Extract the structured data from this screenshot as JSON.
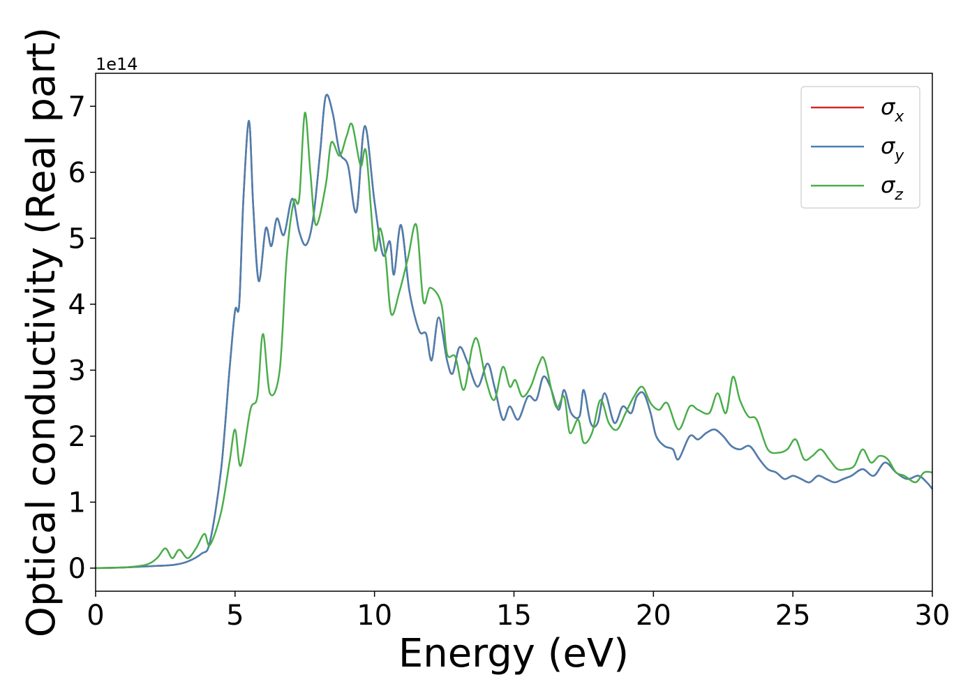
{
  "chart_data": {
    "type": "line",
    "xlabel": "Energy (eV)",
    "ylabel": "Optical conductivity (Real part)",
    "y_offset_label": "1e14",
    "xlim": [
      0,
      30
    ],
    "ylim": [
      -0.35,
      7.5
    ],
    "xticks": [
      0,
      5,
      10,
      15,
      20,
      25,
      30
    ],
    "yticks": [
      0,
      1,
      2,
      3,
      4,
      5,
      6,
      7
    ],
    "grid": false,
    "legend_position": "top-right",
    "colors": {
      "sigma_x": "#d62728",
      "sigma_y": "#4a7fb0",
      "sigma_z": "#4aad4a"
    },
    "legend": [
      {
        "key": "sigma_x",
        "symbol": "σ",
        "subscript": "x"
      },
      {
        "key": "sigma_y",
        "symbol": "σ",
        "subscript": "y"
      },
      {
        "key": "sigma_z",
        "symbol": "σ",
        "subscript": "z"
      }
    ],
    "series": [
      {
        "key": "sigma_xy",
        "points": [
          [
            0,
            0
          ],
          [
            1,
            0.01
          ],
          [
            2,
            0.03
          ],
          [
            2.8,
            0.05
          ],
          [
            3.3,
            0.1
          ],
          [
            3.8,
            0.22
          ],
          [
            4.1,
            0.4
          ],
          [
            4.5,
            1.5
          ],
          [
            4.8,
            3.0
          ],
          [
            5.0,
            3.9
          ],
          [
            5.15,
            4.0
          ],
          [
            5.3,
            5.6
          ],
          [
            5.5,
            6.78
          ],
          [
            5.65,
            5.5
          ],
          [
            5.85,
            4.35
          ],
          [
            6.1,
            5.15
          ],
          [
            6.3,
            4.88
          ],
          [
            6.5,
            5.3
          ],
          [
            6.75,
            5.05
          ],
          [
            7.05,
            5.6
          ],
          [
            7.3,
            5.1
          ],
          [
            7.55,
            4.9
          ],
          [
            7.8,
            5.3
          ],
          [
            8.05,
            6.3
          ],
          [
            8.25,
            7.15
          ],
          [
            8.5,
            6.9
          ],
          [
            8.75,
            6.3
          ],
          [
            9.05,
            6.1
          ],
          [
            9.35,
            5.4
          ],
          [
            9.65,
            6.7
          ],
          [
            10.0,
            5.55
          ],
          [
            10.3,
            4.75
          ],
          [
            10.55,
            4.95
          ],
          [
            10.7,
            4.45
          ],
          [
            10.95,
            5.2
          ],
          [
            11.25,
            4.2
          ],
          [
            11.6,
            3.6
          ],
          [
            11.85,
            3.55
          ],
          [
            12.05,
            3.15
          ],
          [
            12.3,
            3.8
          ],
          [
            12.6,
            3.15
          ],
          [
            12.8,
            2.95
          ],
          [
            13.05,
            3.35
          ],
          [
            13.35,
            3.1
          ],
          [
            13.7,
            2.75
          ],
          [
            14.05,
            3.1
          ],
          [
            14.3,
            2.75
          ],
          [
            14.6,
            2.25
          ],
          [
            14.85,
            2.45
          ],
          [
            15.15,
            2.25
          ],
          [
            15.5,
            2.6
          ],
          [
            15.8,
            2.55
          ],
          [
            16.05,
            2.9
          ],
          [
            16.3,
            2.75
          ],
          [
            16.6,
            2.4
          ],
          [
            16.8,
            2.7
          ],
          [
            17.05,
            2.35
          ],
          [
            17.35,
            2.3
          ],
          [
            17.5,
            2.7
          ],
          [
            17.75,
            2.2
          ],
          [
            18.0,
            2.2
          ],
          [
            18.25,
            2.65
          ],
          [
            18.6,
            2.2
          ],
          [
            18.9,
            2.45
          ],
          [
            19.2,
            2.35
          ],
          [
            19.4,
            2.6
          ],
          [
            19.65,
            2.65
          ],
          [
            19.9,
            2.35
          ],
          [
            20.1,
            2.0
          ],
          [
            20.4,
            1.85
          ],
          [
            20.7,
            1.8
          ],
          [
            20.9,
            1.65
          ],
          [
            21.3,
            2.0
          ],
          [
            21.6,
            1.95
          ],
          [
            21.9,
            2.05
          ],
          [
            22.2,
            2.1
          ],
          [
            22.5,
            2.0
          ],
          [
            22.8,
            1.85
          ],
          [
            23.1,
            1.8
          ],
          [
            23.45,
            1.85
          ],
          [
            23.8,
            1.65
          ],
          [
            24.1,
            1.5
          ],
          [
            24.4,
            1.45
          ],
          [
            24.7,
            1.35
          ],
          [
            25.0,
            1.4
          ],
          [
            25.3,
            1.35
          ],
          [
            25.6,
            1.3
          ],
          [
            25.9,
            1.4
          ],
          [
            26.2,
            1.35
          ],
          [
            26.5,
            1.3
          ],
          [
            26.8,
            1.35
          ],
          [
            27.1,
            1.4
          ],
          [
            27.5,
            1.5
          ],
          [
            27.9,
            1.4
          ],
          [
            28.3,
            1.6
          ],
          [
            28.7,
            1.45
          ],
          [
            29.1,
            1.35
          ],
          [
            29.5,
            1.4
          ],
          [
            29.8,
            1.3
          ],
          [
            30.0,
            1.2
          ]
        ]
      },
      {
        "key": "sigma_z",
        "points": [
          [
            0,
            0
          ],
          [
            1,
            0.01
          ],
          [
            1.8,
            0.05
          ],
          [
            2.2,
            0.15
          ],
          [
            2.5,
            0.3
          ],
          [
            2.75,
            0.15
          ],
          [
            3.0,
            0.28
          ],
          [
            3.3,
            0.15
          ],
          [
            3.6,
            0.3
          ],
          [
            3.9,
            0.52
          ],
          [
            4.1,
            0.35
          ],
          [
            4.5,
            0.85
          ],
          [
            4.8,
            1.6
          ],
          [
            5.0,
            2.1
          ],
          [
            5.2,
            1.55
          ],
          [
            5.55,
            2.4
          ],
          [
            5.8,
            2.6
          ],
          [
            6.0,
            3.55
          ],
          [
            6.25,
            2.65
          ],
          [
            6.6,
            3.0
          ],
          [
            6.85,
            4.7
          ],
          [
            7.1,
            5.55
          ],
          [
            7.3,
            5.6
          ],
          [
            7.5,
            6.9
          ],
          [
            7.7,
            6.0
          ],
          [
            7.9,
            5.2
          ],
          [
            8.25,
            5.8
          ],
          [
            8.45,
            6.45
          ],
          [
            8.75,
            6.25
          ],
          [
            9.0,
            6.55
          ],
          [
            9.2,
            6.72
          ],
          [
            9.5,
            6.1
          ],
          [
            9.7,
            6.3
          ],
          [
            10.0,
            4.85
          ],
          [
            10.2,
            5.15
          ],
          [
            10.4,
            4.7
          ],
          [
            10.6,
            3.85
          ],
          [
            10.9,
            4.2
          ],
          [
            11.2,
            4.7
          ],
          [
            11.5,
            5.2
          ],
          [
            11.75,
            4.05
          ],
          [
            12.0,
            4.25
          ],
          [
            12.4,
            4.0
          ],
          [
            12.6,
            3.25
          ],
          [
            12.9,
            3.2
          ],
          [
            13.2,
            2.7
          ],
          [
            13.5,
            3.35
          ],
          [
            13.7,
            3.45
          ],
          [
            14.0,
            2.85
          ],
          [
            14.3,
            2.55
          ],
          [
            14.6,
            3.05
          ],
          [
            14.85,
            2.75
          ],
          [
            15.05,
            2.85
          ],
          [
            15.3,
            2.6
          ],
          [
            15.6,
            2.75
          ],
          [
            15.9,
            3.1
          ],
          [
            16.1,
            3.15
          ],
          [
            16.5,
            2.45
          ],
          [
            16.8,
            2.6
          ],
          [
            17.0,
            2.05
          ],
          [
            17.3,
            2.25
          ],
          [
            17.5,
            1.9
          ],
          [
            17.8,
            2.05
          ],
          [
            18.1,
            2.55
          ],
          [
            18.4,
            2.2
          ],
          [
            18.7,
            2.1
          ],
          [
            19.0,
            2.35
          ],
          [
            19.3,
            2.6
          ],
          [
            19.6,
            2.75
          ],
          [
            19.9,
            2.5
          ],
          [
            20.2,
            2.4
          ],
          [
            20.5,
            2.5
          ],
          [
            20.9,
            2.1
          ],
          [
            21.3,
            2.45
          ],
          [
            21.6,
            2.4
          ],
          [
            22.0,
            2.35
          ],
          [
            22.3,
            2.65
          ],
          [
            22.6,
            2.35
          ],
          [
            22.85,
            2.9
          ],
          [
            23.1,
            2.55
          ],
          [
            23.4,
            2.3
          ],
          [
            23.7,
            2.25
          ],
          [
            24.1,
            1.8
          ],
          [
            24.5,
            1.75
          ],
          [
            24.8,
            1.8
          ],
          [
            25.1,
            1.95
          ],
          [
            25.4,
            1.65
          ],
          [
            25.7,
            1.7
          ],
          [
            26.0,
            1.8
          ],
          [
            26.3,
            1.65
          ],
          [
            26.6,
            1.5
          ],
          [
            26.9,
            1.5
          ],
          [
            27.2,
            1.55
          ],
          [
            27.5,
            1.8
          ],
          [
            27.8,
            1.6
          ],
          [
            28.1,
            1.7
          ],
          [
            28.4,
            1.65
          ],
          [
            28.7,
            1.45
          ],
          [
            29.0,
            1.4
          ],
          [
            29.4,
            1.3
          ],
          [
            29.7,
            1.45
          ],
          [
            30.0,
            1.45
          ]
        ]
      }
    ]
  }
}
